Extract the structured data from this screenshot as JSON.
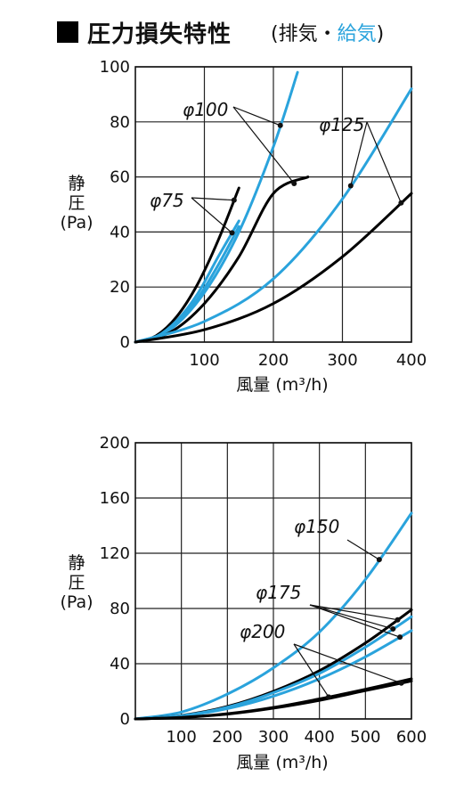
{
  "header": {
    "title": "圧力損失特性",
    "paren_open": "(",
    "subtitle_exhaust": "排気",
    "subtitle_dot": "・",
    "subtitle_supply": "給気",
    "paren_close": ")"
  },
  "legend_meaning": {
    "exhaust_color": "#000000",
    "supply_color": "#2aa3dc"
  },
  "chart_data": [
    {
      "type": "line",
      "xlabel": "風量 (m³/h)",
      "ylabel": "静圧 (Pa)",
      "xlim": [
        0,
        400
      ],
      "ylim": [
        0,
        100
      ],
      "xticks": [
        100,
        200,
        300,
        400
      ],
      "yticks": [
        0,
        20,
        40,
        60,
        80,
        100
      ],
      "grid": true,
      "annotations": [
        "φ100",
        "φ75",
        "φ125"
      ],
      "series": [
        {
          "group": "φ75",
          "mode": "exhaust",
          "color": "#000000",
          "x": [
            0,
            30,
            60,
            90,
            120,
            150
          ],
          "y": [
            0,
            2.3,
            9.3,
            21,
            37,
            56
          ]
        },
        {
          "group": "φ75",
          "mode": "supply",
          "color": "#2aa3dc",
          "x": [
            0,
            30,
            60,
            90,
            120,
            150
          ],
          "y": [
            0,
            1.9,
            7.8,
            17.5,
            31,
            44
          ]
        },
        {
          "group": "φ75",
          "mode": "supply",
          "color": "#2aa3dc",
          "x": [
            0,
            30,
            60,
            90,
            120,
            150
          ],
          "y": [
            0,
            1.7,
            7,
            15.8,
            28,
            42
          ]
        },
        {
          "group": "φ100",
          "mode": "supply",
          "color": "#2aa3dc",
          "x": [
            0,
            50,
            100,
            150,
            200,
            235
          ],
          "y": [
            0,
            4.5,
            18,
            40,
            71,
            98
          ]
        },
        {
          "group": "φ100",
          "mode": "exhaust",
          "color": "#000000",
          "x": [
            0,
            50,
            100,
            150,
            200,
            250
          ],
          "y": [
            0,
            3.5,
            14,
            31,
            54,
            60
          ]
        },
        {
          "group": "φ125",
          "mode": "supply",
          "color": "#2aa3dc",
          "x": [
            0,
            100,
            200,
            300,
            400
          ],
          "y": [
            0,
            7.5,
            23,
            52,
            92
          ]
        },
        {
          "group": "φ125",
          "mode": "exhaust",
          "color": "#000000",
          "x": [
            0,
            100,
            200,
            300,
            400
          ],
          "y": [
            0,
            4.5,
            14,
            31,
            54
          ]
        }
      ]
    },
    {
      "type": "line",
      "xlabel": "風量 (m³/h)",
      "ylabel": "静圧 (Pa)",
      "xlim": [
        0,
        600
      ],
      "ylim": [
        0,
        200
      ],
      "xticks": [
        100,
        200,
        300,
        400,
        500,
        600
      ],
      "yticks": [
        0,
        40,
        80,
        120,
        160,
        200
      ],
      "grid": true,
      "annotations": [
        "φ150",
        "φ175",
        "φ200"
      ],
      "series": [
        {
          "group": "φ150",
          "mode": "supply",
          "color": "#2aa3dc",
          "x": [
            0,
            100,
            200,
            300,
            400,
            500,
            600
          ],
          "y": [
            0,
            5,
            18,
            37,
            63,
            101,
            149
          ]
        },
        {
          "group": "φ175",
          "mode": "exhaust",
          "color": "#000000",
          "x": [
            0,
            100,
            200,
            300,
            400,
            500,
            600
          ],
          "y": [
            0,
            2.5,
            9,
            20,
            35,
            55,
            79
          ]
        },
        {
          "group": "φ175",
          "mode": "supply",
          "color": "#2aa3dc",
          "x": [
            0,
            100,
            200,
            300,
            400,
            500,
            600
          ],
          "y": [
            0,
            2.3,
            8.5,
            19,
            33,
            52,
            74
          ]
        },
        {
          "group": "φ175",
          "mode": "supply",
          "color": "#2aa3dc",
          "x": [
            0,
            100,
            200,
            300,
            400,
            500,
            600
          ],
          "y": [
            0,
            2.1,
            7.5,
            16.5,
            29,
            45,
            64
          ]
        },
        {
          "group": "φ200",
          "mode": "exhaust",
          "color": "#000000",
          "x": [
            0,
            100,
            200,
            300,
            400,
            500,
            600
          ],
          "y": [
            0,
            1.1,
            3.8,
            8.3,
            14.5,
            21.5,
            29
          ]
        },
        {
          "group": "φ200",
          "mode": "exhaust",
          "color": "#000000",
          "x": [
            0,
            100,
            200,
            300,
            400,
            500,
            600
          ],
          "y": [
            0,
            1.0,
            3.5,
            7.8,
            13.5,
            20.5,
            27.5
          ]
        }
      ]
    }
  ]
}
